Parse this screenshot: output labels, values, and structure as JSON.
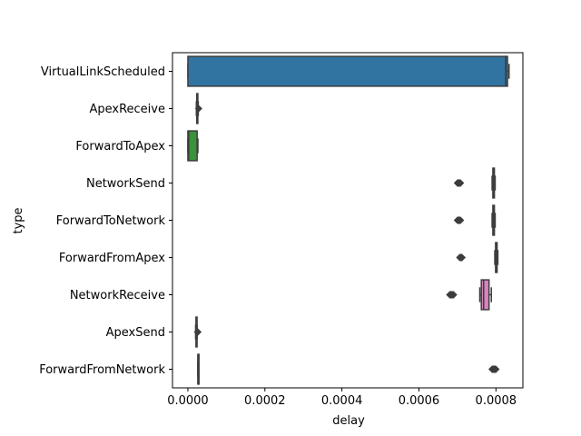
{
  "chart_data": {
    "type": "boxplot",
    "orientation": "horizontal",
    "title": "",
    "xlabel": "delay",
    "ylabel": "type",
    "xlim": [
      -4e-05,
      0.00087
    ],
    "xticks": [
      0.0,
      0.0002,
      0.0004,
      0.0006,
      0.0008
    ],
    "xtick_labels": [
      "0.0000",
      "0.0002",
      "0.0004",
      "0.0006",
      "0.0008"
    ],
    "grid": false,
    "legend": "none",
    "categories": [
      {
        "name": "VirtualLinkScheduled",
        "color": "#3274a1",
        "q1": 0.0,
        "median": 0.000825,
        "q3": 0.00083,
        "whislo": 0.0,
        "whishi": 0.000834,
        "fliers": []
      },
      {
        "name": "ApexReceive",
        "color": "#e1812c",
        "q1": 2.3e-05,
        "median": 2.4e-05,
        "q3": 2.5e-05,
        "whislo": 2.2e-05,
        "whishi": 2.7e-05,
        "fliers": [
          2.8e-05
        ]
      },
      {
        "name": "ForwardToApex",
        "color": "#3a923a",
        "q1": 0.0,
        "median": 2e-06,
        "q3": 2.4e-05,
        "whislo": 0.0,
        "whishi": 2.6e-05,
        "fliers": []
      },
      {
        "name": "NetworkSend",
        "color": "#c03d3e",
        "q1": 0.000792,
        "median": 0.000794,
        "q3": 0.000796,
        "whislo": 0.00079,
        "whishi": 0.000798,
        "fliers": [
          0.0007,
          0.000701,
          0.000702,
          0.000703,
          0.000704,
          0.000705,
          0.000706,
          0.000707,
          0.000708
        ]
      },
      {
        "name": "ForwardToNetwork",
        "color": "#9372b2",
        "q1": 0.000792,
        "median": 0.000794,
        "q3": 0.000796,
        "whislo": 0.00079,
        "whishi": 0.000798,
        "fliers": [
          0.0007,
          0.000701,
          0.000702,
          0.000703,
          0.000704,
          0.000705,
          0.000706,
          0.000707,
          0.000708
        ]
      },
      {
        "name": "ForwardFromApex",
        "color": "#845b53",
        "q1": 0.000799,
        "median": 0.000801,
        "q3": 0.000803,
        "whislo": 0.000797,
        "whishi": 0.000805,
        "fliers": [
          0.000706,
          0.000707,
          0.000708,
          0.000709,
          0.00071,
          0.000711,
          0.000712
        ]
      },
      {
        "name": "NetworkReceive",
        "color": "#d684bd",
        "q1": 0.000762,
        "median": 0.000768,
        "q3": 0.000782,
        "whislo": 0.000758,
        "whishi": 0.000788,
        "fliers": [
          0.00068,
          0.000681,
          0.000682,
          0.000683,
          0.000684,
          0.000685,
          0.000686,
          0.000687,
          0.000688,
          0.000689,
          0.00069
        ]
      },
      {
        "name": "ApexSend",
        "color": "#7f7f7f",
        "q1": 2.1e-05,
        "median": 2.2e-05,
        "q3": 2.3e-05,
        "whislo": 2e-05,
        "whishi": 2.4e-05,
        "fliers": [
          2.5e-05,
          2.6e-05
        ]
      },
      {
        "name": "ForwardFromNetwork",
        "color": "#a9aa35",
        "q1": 2.6e-05,
        "median": 2.6e-05,
        "q3": 2.6e-05,
        "whislo": 2.6e-05,
        "whishi": 2.6e-05,
        "fliers": [
          0.00079,
          0.000791,
          0.000792,
          0.000793,
          0.000794,
          0.000795,
          0.000796,
          0.000797,
          0.000798,
          0.000799,
          0.0008
        ]
      }
    ]
  }
}
